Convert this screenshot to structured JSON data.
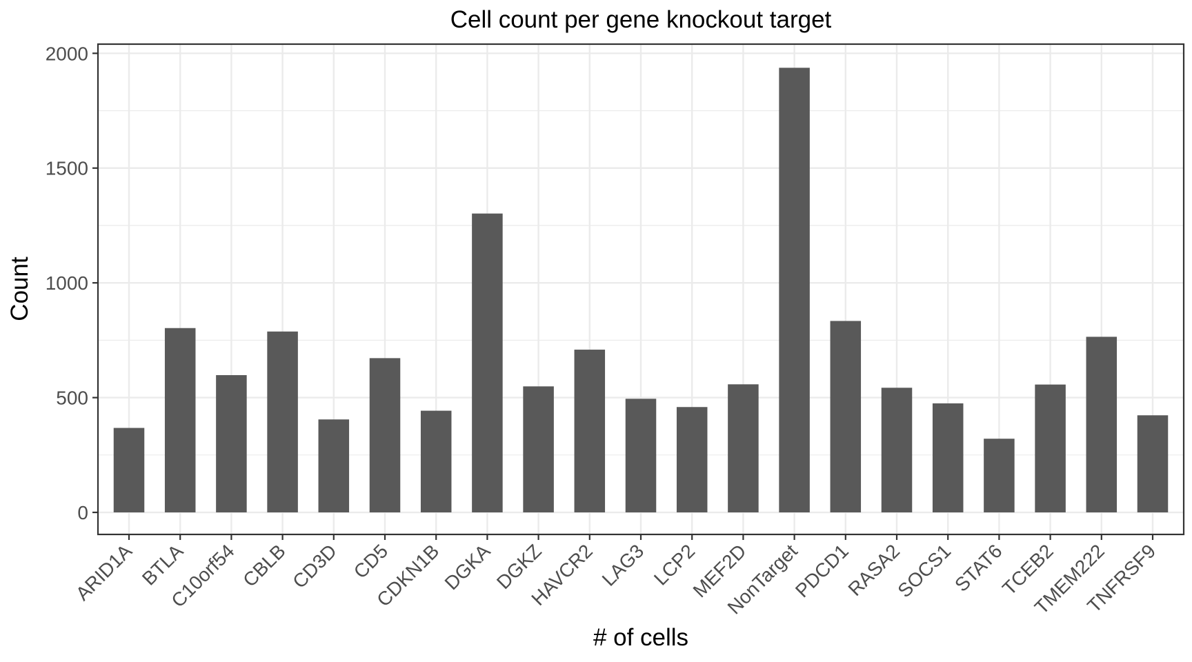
{
  "chart_data": {
    "type": "bar",
    "title": "Cell count per gene knockout target",
    "xlabel": "# of cells",
    "ylabel": "Count",
    "categories": [
      "ARID1A",
      "BTLA",
      "C10orf54",
      "CBLB",
      "CD3D",
      "CD5",
      "CDKN1B",
      "DGKA",
      "DGKZ",
      "HAVCR2",
      "LAG3",
      "LCP2",
      "MEF2D",
      "NonTarget",
      "PDCD1",
      "RASA2",
      "SOCS1",
      "STAT6",
      "TCEB2",
      "TMEM222",
      "TNFRSF9"
    ],
    "values": [
      368,
      803,
      598,
      788,
      405,
      672,
      443,
      1302,
      549,
      709,
      495,
      459,
      558,
      1937,
      834,
      543,
      475,
      321,
      557,
      765,
      423
    ],
    "ylim": [
      -96,
      2040
    ],
    "yticks": [
      0,
      500,
      1000,
      1500,
      2000
    ],
    "ytick_labels": [
      "0",
      "500",
      "1000",
      "1500",
      "2000"
    ],
    "grid": true,
    "legend": "none",
    "bar_color": "#595959"
  }
}
